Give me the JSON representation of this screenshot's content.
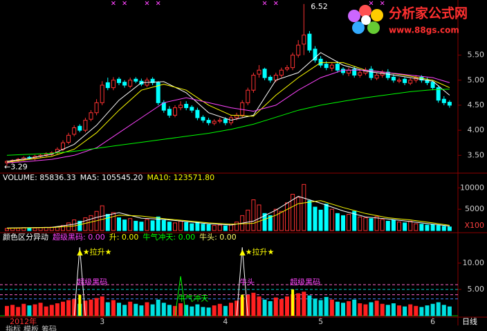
{
  "logo": {
    "title": "分析家公式网",
    "url": "www.88gs.com"
  },
  "period": "日线",
  "tabs": [
    "指标",
    "模板",
    "筹码"
  ],
  "chart_data": [
    {
      "type": "candlestick",
      "categories": [
        null,
        "2012年",
        null,
        null,
        null,
        null,
        null,
        null,
        null,
        null,
        null,
        null,
        null,
        null,
        null,
        null,
        null,
        "3",
        null,
        null,
        null,
        null,
        null,
        null,
        null,
        null,
        null,
        null,
        null,
        null,
        null,
        null,
        null,
        null,
        null,
        null,
        null,
        null,
        null,
        "4",
        null,
        null,
        null,
        null,
        null,
        null,
        null,
        null,
        null,
        null,
        null,
        null,
        null,
        null,
        null,
        null,
        "5",
        null,
        null,
        null,
        null,
        null,
        null,
        null,
        null,
        null,
        null,
        null,
        null,
        null,
        null,
        null,
        null,
        null,
        null,
        null,
        "6",
        null,
        null,
        null
      ],
      "open": [
        3.35,
        3.38,
        3.4,
        3.42,
        3.46,
        3.44,
        3.48,
        3.5,
        3.52,
        3.55,
        3.62,
        3.76,
        3.92,
        4.08,
        4.0,
        4.22,
        4.35,
        4.55,
        4.95,
        4.85,
        5.02,
        4.96,
        4.88,
        5.02,
        4.98,
        4.9,
        5.02,
        4.95,
        4.55,
        4.42,
        4.3,
        4.45,
        4.52,
        4.46,
        4.4,
        4.26,
        4.2,
        4.14,
        4.18,
        4.22,
        4.15,
        4.25,
        4.3,
        4.55,
        4.8,
        5.12,
        5.22,
        5.06,
        5.0,
        5.1,
        5.22,
        5.25,
        5.5,
        5.72,
        5.92,
        5.62,
        5.42,
        5.32,
        5.24,
        5.32,
        5.22,
        5.14,
        5.22,
        5.1,
        5.14,
        5.22,
        5.04,
        5.1,
        5.16,
        5.06,
        4.98,
        5.02,
        4.94,
        5.0,
        5.06,
        5.0,
        4.96,
        4.85,
        4.62,
        4.56
      ],
      "high": [
        3.4,
        3.42,
        3.45,
        3.48,
        3.49,
        3.51,
        3.53,
        3.56,
        3.58,
        3.66,
        3.8,
        3.95,
        4.1,
        4.12,
        4.25,
        4.4,
        4.62,
        4.98,
        5.05,
        5.06,
        5.06,
        5.0,
        5.05,
        5.06,
        5.03,
        5.05,
        5.06,
        4.98,
        4.6,
        4.48,
        4.5,
        4.58,
        4.58,
        4.5,
        4.45,
        4.3,
        4.25,
        4.22,
        4.25,
        4.26,
        4.3,
        4.35,
        4.6,
        4.85,
        5.15,
        5.3,
        5.25,
        5.1,
        5.15,
        5.25,
        5.3,
        5.55,
        5.8,
        6.52,
        5.98,
        5.68,
        5.48,
        5.38,
        5.35,
        5.38,
        5.26,
        5.25,
        5.28,
        5.2,
        5.25,
        5.28,
        5.15,
        5.2,
        5.22,
        5.12,
        5.05,
        5.06,
        5.05,
        5.1,
        5.1,
        5.05,
        5.0,
        4.9,
        4.68,
        4.6
      ],
      "low": [
        3.29,
        3.34,
        3.37,
        3.39,
        3.42,
        3.4,
        3.45,
        3.47,
        3.49,
        3.52,
        3.58,
        3.72,
        3.88,
        3.96,
        3.96,
        4.18,
        4.3,
        4.5,
        4.8,
        4.8,
        4.9,
        4.85,
        4.84,
        4.94,
        4.88,
        4.86,
        4.9,
        4.5,
        4.35,
        4.25,
        4.26,
        4.4,
        4.4,
        4.35,
        4.2,
        4.15,
        4.1,
        4.1,
        4.14,
        4.1,
        4.1,
        4.2,
        4.26,
        4.5,
        4.75,
        5.05,
        5.0,
        4.95,
        4.96,
        5.05,
        5.18,
        5.2,
        5.45,
        5.5,
        5.55,
        5.35,
        5.25,
        5.2,
        5.18,
        5.15,
        5.1,
        5.08,
        5.05,
        5.05,
        5.1,
        5.0,
        5.0,
        5.05,
        5.0,
        4.95,
        4.94,
        4.9,
        4.9,
        4.95,
        4.95,
        4.9,
        4.8,
        4.55,
        4.5,
        4.45
      ],
      "close": [
        3.38,
        3.4,
        3.42,
        3.45,
        3.44,
        3.48,
        3.5,
        3.52,
        3.55,
        3.62,
        3.75,
        3.9,
        4.05,
        4.0,
        4.2,
        4.35,
        4.55,
        4.9,
        4.85,
        5.0,
        4.95,
        4.9,
        5.0,
        4.98,
        4.92,
        5.0,
        4.95,
        4.55,
        4.4,
        4.3,
        4.45,
        4.5,
        4.45,
        4.4,
        4.25,
        4.2,
        4.15,
        4.18,
        4.2,
        4.15,
        4.25,
        4.3,
        4.55,
        4.8,
        5.1,
        5.2,
        5.05,
        5.0,
        5.1,
        5.2,
        5.25,
        5.5,
        5.7,
        5.9,
        5.6,
        5.4,
        5.3,
        5.25,
        5.3,
        5.2,
        5.15,
        5.2,
        5.1,
        5.15,
        5.2,
        5.05,
        5.1,
        5.15,
        5.05,
        5.0,
        5.0,
        4.95,
        5.0,
        5.05,
        5.0,
        4.95,
        4.85,
        4.6,
        4.55,
        4.5
      ],
      "up_color": "#ff3232",
      "down_color": "#00ffff",
      "ylim": [
        3.2,
        6.6
      ],
      "yticks": [
        {
          "value": 3.5,
          "label": "3.50"
        },
        {
          "value": 4.0,
          "label": "4.00"
        },
        {
          "value": 4.5,
          "label": "4.50"
        },
        {
          "value": 5.0,
          "label": "5.00"
        },
        {
          "value": 5.5,
          "label": "5.50"
        }
      ],
      "series": [
        {
          "color": "#ffffff",
          "x": [
            0,
            4,
            8,
            12,
            16,
            20,
            24,
            28,
            32,
            36,
            40,
            44,
            48,
            52,
            56,
            60,
            64,
            68,
            72,
            76,
            79
          ],
          "values": [
            3.38,
            3.44,
            3.52,
            3.72,
            4.1,
            4.6,
            4.95,
            4.97,
            4.75,
            4.35,
            4.2,
            4.3,
            5.0,
            5.15,
            5.55,
            5.3,
            5.18,
            5.12,
            5.05,
            4.98,
            4.7
          ]
        },
        {
          "color": "#ffff00",
          "x": [
            0,
            4,
            8,
            12,
            16,
            20,
            24,
            28,
            32,
            36,
            40,
            44,
            48,
            52,
            56,
            60,
            64,
            68,
            72,
            76,
            79
          ],
          "values": [
            3.36,
            3.42,
            3.48,
            3.62,
            3.95,
            4.4,
            4.8,
            4.92,
            4.8,
            4.5,
            4.3,
            4.28,
            4.7,
            5.05,
            5.35,
            5.35,
            5.2,
            5.15,
            5.08,
            5.0,
            4.85
          ]
        },
        {
          "color": "#ff44ff",
          "x": [
            0,
            4,
            8,
            12,
            16,
            20,
            24,
            28,
            32,
            36,
            40,
            44,
            48,
            52,
            56,
            60,
            64,
            68,
            72,
            76,
            79
          ],
          "values": [
            3.35,
            3.38,
            3.42,
            3.5,
            3.65,
            3.95,
            4.25,
            4.55,
            4.65,
            4.55,
            4.45,
            4.38,
            4.5,
            4.8,
            5.05,
            5.2,
            5.2,
            5.15,
            5.1,
            5.05,
            4.95
          ]
        },
        {
          "color": "#00ff00",
          "x": [
            0,
            4,
            8,
            12,
            16,
            20,
            24,
            28,
            32,
            36,
            40,
            44,
            48,
            52,
            56,
            60,
            64,
            68,
            72,
            76,
            79
          ],
          "values": [
            3.5,
            3.52,
            3.54,
            3.58,
            3.64,
            3.7,
            3.76,
            3.82,
            3.88,
            3.94,
            4.02,
            4.12,
            4.26,
            4.4,
            4.5,
            4.58,
            4.65,
            4.71,
            4.77,
            4.81,
            4.82
          ]
        }
      ],
      "annotations": [
        {
          "text": "6.52",
          "x": 53,
          "y": 6.52
        },
        {
          "text": "←3.29",
          "x": 0,
          "y": 3.29
        }
      ],
      "signal_days": [
        19,
        21,
        25,
        27,
        46,
        48,
        65,
        67
      ],
      "signal_color": "#ff44ff"
    },
    {
      "type": "bar",
      "header": [
        {
          "text": "VOLUME: 85836.33",
          "color": "#ffffff"
        },
        {
          "text": "MA5: 105545.20",
          "color": "#ffffff"
        },
        {
          "text": "MA10: 123571.80",
          "color": "#ffff00"
        }
      ],
      "values": [
        500,
        600,
        550,
        700,
        650,
        600,
        700,
        750,
        800,
        900,
        1200,
        1800,
        2500,
        2200,
        3000,
        3500,
        4500,
        5800,
        3800,
        4200,
        3000,
        2500,
        2800,
        2200,
        2000,
        2600,
        2300,
        3200,
        2400,
        2000,
        1800,
        2200,
        1900,
        1600,
        2000,
        1500,
        1400,
        1200,
        1300,
        1100,
        1500,
        2000,
        3500,
        4800,
        7200,
        6000,
        4000,
        3500,
        5000,
        4500,
        6500,
        8500,
        7800,
        10800,
        7000,
        5500,
        4800,
        6200,
        5000,
        4000,
        3500,
        3800,
        4500,
        3200,
        3000,
        2800,
        3300,
        2600,
        2200,
        2500,
        2000,
        1800,
        2200,
        1600,
        1500,
        1300,
        1400,
        1200,
        1000,
        858.36
      ],
      "ylim": [
        0,
        11500
      ],
      "yticks": [
        5000,
        10000
      ],
      "unit": "X100",
      "series": [
        {
          "color": "#ffffff",
          "x": [
            0,
            4,
            8,
            12,
            16,
            20,
            24,
            28,
            32,
            36,
            40,
            44,
            48,
            52,
            56,
            60,
            64,
            68,
            72,
            76,
            79
          ],
          "values": [
            600,
            700,
            780,
            1500,
            3100,
            4200,
            2900,
            2600,
            2100,
            1600,
            1300,
            2200,
            4800,
            8000,
            6400,
            4600,
            3200,
            2700,
            2100,
            1500,
            1055.45
          ]
        },
        {
          "color": "#ffff00",
          "x": [
            0,
            4,
            8,
            12,
            16,
            20,
            24,
            28,
            32,
            36,
            40,
            44,
            48,
            52,
            56,
            60,
            64,
            68,
            72,
            76,
            79
          ],
          "values": [
            550,
            650,
            720,
            1100,
            2300,
            3600,
            3400,
            2800,
            2300,
            1800,
            1500,
            1700,
            3600,
            6300,
            7000,
            5400,
            4000,
            3000,
            2500,
            1800,
            1235.72
          ]
        }
      ]
    },
    {
      "type": "bar",
      "header": [
        {
          "text": "颜色区分异动",
          "color": "#ffffff"
        },
        {
          "text": "超级黑码: 0.00",
          "color": "#ff44ff"
        },
        {
          "text": "升: 0.00",
          "color": "#ffff00"
        },
        {
          "text": "牛气冲天: 0.00",
          "color": "#00ff00"
        },
        {
          "text": "牛头: 0.00",
          "color": "#ffff66"
        }
      ],
      "values": [
        1.8,
        2.0,
        1.6,
        2.2,
        1.9,
        2.1,
        2.4,
        1.7,
        2.0,
        2.3,
        2.6,
        2.9,
        3.1,
        2.2,
        2.8,
        3.0,
        3.3,
        3.6,
        2.5,
        2.9,
        2.4,
        2.0,
        2.6,
        2.2,
        1.9,
        2.5,
        2.1,
        3.0,
        2.4,
        2.0,
        1.8,
        2.3,
        2.0,
        1.7,
        2.1,
        1.6,
        1.5,
        1.9,
        2.2,
        1.8,
        2.4,
        2.8,
        3.5,
        3.9,
        4.3,
        3.6,
        3.0,
        2.7,
        3.4,
        3.1,
        3.6,
        4.0,
        4.2,
        4.5,
        3.8,
        3.2,
        2.9,
        3.5,
        3.0,
        2.6,
        2.4,
        2.7,
        3.0,
        2.3,
        2.1,
        2.5,
        2.8,
        2.2,
        2.0,
        2.3,
        1.9,
        1.7,
        2.1,
        1.8,
        1.6,
        1.9,
        2.2,
        2.5,
        2.0,
        1.7
      ],
      "up_color": "#ff2020",
      "down_color": "#00e0e0",
      "ylim": [
        0,
        14.2
      ],
      "yticks": [
        {
          "value": 5,
          "label": "5.00"
        },
        {
          "value": 10,
          "label": "10.00"
        }
      ],
      "ref_lines": [
        {
          "value": 5.9,
          "color": "#ff66cc"
        },
        {
          "value": 5.0,
          "color": "#00cccc"
        },
        {
          "value": 4.0,
          "color": "#ff66cc"
        },
        {
          "value": 3.2,
          "color": "#4488ff"
        }
      ],
      "spikes": [
        {
          "x": 13,
          "value": 13.0,
          "color": "#ffffff"
        },
        {
          "x": 31,
          "value": 7.5,
          "color": "#00ff00"
        },
        {
          "x": 42,
          "value": 13.0,
          "color": "#ffffff"
        }
      ],
      "markers": [
        {
          "x": 13,
          "value": 4.0
        },
        {
          "x": 42,
          "value": 4.0
        },
        {
          "x": 51,
          "value": 5.0
        }
      ],
      "marker_color": "#ffff00",
      "annotations": [
        {
          "text": "▲★拉升★",
          "x": 13,
          "y": 12.0,
          "color": "#ffff00"
        },
        {
          "text": "▲★拉升★",
          "x": 42,
          "y": 12.0,
          "color": "#ffff00"
        },
        {
          "text": "超级黑码",
          "x": 13,
          "y": 6.3,
          "color": "#ff44ff"
        },
        {
          "text": "超级黑码",
          "x": 51,
          "y": 6.3,
          "color": "#ff44ff"
        },
        {
          "text": "牛气冲天",
          "x": 31,
          "y": 3.2,
          "color": "#00ff00"
        },
        {
          "text": "牛头",
          "x": 42,
          "y": 6.3,
          "color": "#ff44ff"
        }
      ]
    }
  ]
}
